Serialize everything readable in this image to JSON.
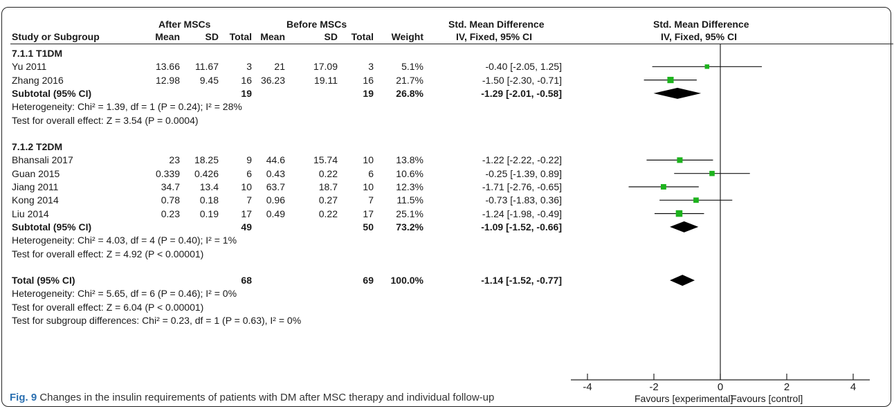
{
  "header": {
    "group_after": "After MSCs",
    "group_before": "Before MSCs",
    "smd_left_title": "Std. Mean Difference",
    "smd_left_sub": "IV, Fixed, 95% CI",
    "smd_right_title": "Std. Mean Difference",
    "smd_right_sub": "IV, Fixed, 95% CI",
    "columns": [
      "Study or Subgroup",
      "Mean",
      "SD",
      "Total",
      "Mean",
      "SD",
      "Total",
      "Weight"
    ]
  },
  "rows": [
    {
      "type": "subgroup",
      "label": "7.1.1 T1DM"
    },
    {
      "type": "study",
      "label": "Yu 2011",
      "mean1": "13.66",
      "sd1": "11.67",
      "n1": "3",
      "mean2": "21",
      "sd2": "17.09",
      "n2": "3",
      "weight": "5.1%",
      "ci": "-0.40 [-2.05, 1.25]"
    },
    {
      "type": "study",
      "label": "Zhang 2016",
      "mean1": "12.98",
      "sd1": "9.45",
      "n1": "16",
      "mean2": "36.23",
      "sd2": "19.11",
      "n2": "16",
      "weight": "21.7%",
      "ci": "-1.50 [-2.30, -0.71]"
    },
    {
      "type": "subtotal",
      "label": "Subtotal (95% CI)",
      "n1": "19",
      "n2": "19",
      "weight": "26.8%",
      "ci": "-1.29 [-2.01, -0.58]"
    },
    {
      "type": "note",
      "label": "Heterogeneity: Chi² = 1.39, df = 1 (P = 0.24); I² = 28%"
    },
    {
      "type": "note",
      "label": "Test for overall effect: Z = 3.54 (P = 0.0004)"
    },
    {
      "type": "blank"
    },
    {
      "type": "subgroup",
      "label": "7.1.2 T2DM"
    },
    {
      "type": "study",
      "label": "Bhansali 2017",
      "mean1": "23",
      "sd1": "18.25",
      "n1": "9",
      "mean2": "44.6",
      "sd2": "15.74",
      "n2": "10",
      "weight": "13.8%",
      "ci": "-1.22 [-2.22, -0.22]"
    },
    {
      "type": "study",
      "label": "Guan 2015",
      "mean1": "0.339",
      "sd1": "0.426",
      "n1": "6",
      "mean2": "0.43",
      "sd2": "0.22",
      "n2": "6",
      "weight": "10.6%",
      "ci": "-0.25 [-1.39, 0.89]"
    },
    {
      "type": "study",
      "label": "Jiang 2011",
      "mean1": "34.7",
      "sd1": "13.4",
      "n1": "10",
      "mean2": "63.7",
      "sd2": "18.7",
      "n2": "10",
      "weight": "12.3%",
      "ci": "-1.71 [-2.76, -0.65]"
    },
    {
      "type": "study",
      "label": "Kong 2014",
      "mean1": "0.78",
      "sd1": "0.18",
      "n1": "7",
      "mean2": "0.96",
      "sd2": "0.27",
      "n2": "7",
      "weight": "11.5%",
      "ci": "-0.73 [-1.83, 0.36]"
    },
    {
      "type": "study",
      "label": "Liu 2014",
      "mean1": "0.23",
      "sd1": "0.19",
      "n1": "17",
      "mean2": "0.49",
      "sd2": "0.22",
      "n2": "17",
      "weight": "25.1%",
      "ci": "-1.24 [-1.98, -0.49]"
    },
    {
      "type": "subtotal",
      "label": "Subtotal (95% CI)",
      "n1": "49",
      "n2": "50",
      "weight": "73.2%",
      "ci": "-1.09 [-1.52, -0.66]"
    },
    {
      "type": "note",
      "label": "Heterogeneity: Chi² = 4.03, df = 4 (P = 0.40); I² = 1%"
    },
    {
      "type": "note",
      "label": "Test for overall effect: Z = 4.92 (P < 0.00001)"
    },
    {
      "type": "blank"
    },
    {
      "type": "subtotal",
      "label": "Total (95% CI)",
      "n1": "68",
      "n2": "69",
      "weight": "100.0%",
      "ci": "-1.14 [-1.52, -0.77]"
    },
    {
      "type": "note",
      "label": "Heterogeneity: Chi² = 5.65, df = 6 (P = 0.46); I² = 0%"
    },
    {
      "type": "note",
      "label": "Test for overall effect: Z = 6.04 (P < 0.00001)"
    },
    {
      "type": "note",
      "label": "Test for subgroup differences: Chi² = 0.23, df = 1 (P = 0.63), I² = 0%"
    }
  ],
  "chart_data": {
    "type": "forest",
    "xlim": [
      -4,
      4
    ],
    "ticks": [
      "-4",
      "-2",
      "0",
      "2",
      "4"
    ],
    "tick_values": [
      -4,
      -2,
      0,
      2,
      4
    ],
    "favours_left": "Favours [experimental]",
    "favours_right": "Favours [control]",
    "marker_color": "#1db31d",
    "diamond_color": "#000000",
    "studies": [
      {
        "name": "Yu 2011",
        "estimate": -0.4,
        "lower": -2.05,
        "upper": 1.25,
        "weight": 5.1
      },
      {
        "name": "Zhang 2016",
        "estimate": -1.5,
        "lower": -2.3,
        "upper": -0.71,
        "weight": 21.7
      },
      {
        "name": "Bhansali 2017",
        "estimate": -1.22,
        "lower": -2.22,
        "upper": -0.22,
        "weight": 13.8
      },
      {
        "name": "Guan 2015",
        "estimate": -0.25,
        "lower": -1.39,
        "upper": 0.89,
        "weight": 10.6
      },
      {
        "name": "Jiang 2011",
        "estimate": -1.71,
        "lower": -2.76,
        "upper": -0.65,
        "weight": 12.3
      },
      {
        "name": "Kong 2014",
        "estimate": -0.73,
        "lower": -1.83,
        "upper": 0.36,
        "weight": 11.5
      },
      {
        "name": "Liu 2014",
        "estimate": -1.24,
        "lower": -1.98,
        "upper": -0.49,
        "weight": 25.1
      }
    ],
    "diamonds": [
      {
        "name": "Subtotal T1DM",
        "estimate": -1.29,
        "lower": -2.01,
        "upper": -0.58
      },
      {
        "name": "Subtotal T2DM",
        "estimate": -1.09,
        "lower": -1.52,
        "upper": -0.66
      },
      {
        "name": "Total",
        "estimate": -1.14,
        "lower": -1.52,
        "upper": -0.77
      }
    ]
  },
  "caption": {
    "label": "Fig. 9",
    "text": " Changes in the insulin requirements of patients with DM after MSC therapy and individual follow-up"
  }
}
